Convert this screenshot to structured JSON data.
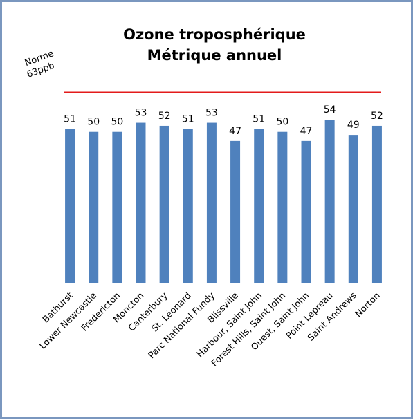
{
  "chart_data": {
    "type": "bar",
    "title": "Ozone troposphérique",
    "subtitle": "Métrique annuel",
    "categories": [
      "Bathurst",
      "Lower Newcastle",
      "Fredericton",
      "Moncton",
      "Canterbury",
      "St. Léonard",
      "Parc National Fundy",
      "Blissville",
      "Harbour, Saint John",
      "Forest Hills, Saint John",
      "Ouest, Saint John",
      "Point Lepreau",
      "Saint Andrews",
      "Norton"
    ],
    "values": [
      51,
      50,
      50,
      53,
      52,
      51,
      53,
      47,
      51,
      50,
      47,
      54,
      49,
      52
    ],
    "color": "#4f81bd",
    "ylim": [
      0,
      70
    ],
    "reference_line": {
      "value": 63,
      "label_lines": [
        "Norme",
        "63ppb"
      ],
      "color": "#e31b1b"
    }
  }
}
